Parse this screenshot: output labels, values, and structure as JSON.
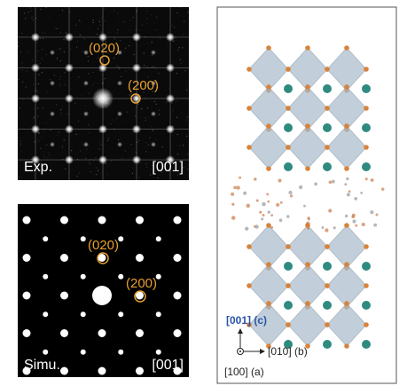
{
  "experimental": {
    "spot_labels": [
      "(020)",
      "(200)"
    ],
    "label": "Exp.",
    "zone_axis": "[001]"
  },
  "simulated": {
    "spot_labels": [
      "(020)",
      "(200)"
    ],
    "label": "Simu.",
    "zone_axis": "[001]"
  },
  "structure": {
    "axis_c": "[001] (c)",
    "axis_b": "[010] (b)",
    "axis_a": "[100] (a)"
  }
}
